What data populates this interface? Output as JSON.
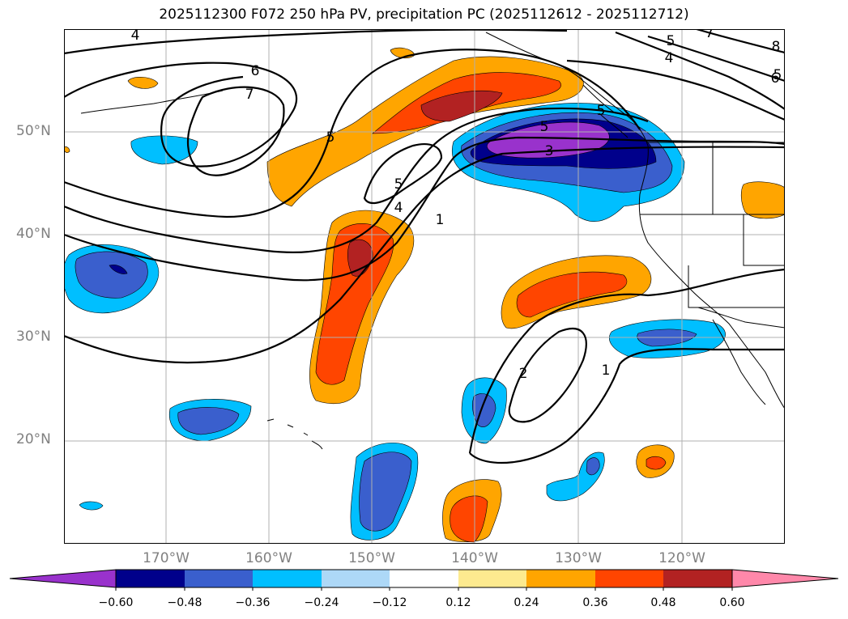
{
  "title": "2025112300 F072 250 hPa PV, precipitation PC (2025112612 - 2025112712)",
  "lat_labels": [
    "50°N",
    "40°N",
    "30°N",
    "20°N"
  ],
  "lon_labels": [
    "170°W",
    "160°W",
    "150°W",
    "140°W",
    "130°W",
    "120°W"
  ],
  "contour_labels": [
    "4",
    "6",
    "7",
    "5",
    "5",
    "5",
    "5",
    "4",
    "1",
    "5",
    "3",
    "5",
    "4",
    "6",
    "7",
    "8",
    "2",
    "1"
  ],
  "colorbar": {
    "ticks": [
      "−0.60",
      "−0.48",
      "−0.36",
      "−0.24",
      "−0.12",
      "0.12",
      "0.24",
      "0.36",
      "0.48",
      "0.60"
    ],
    "colors": [
      "#9932cc",
      "#00008b",
      "#3a5fcd",
      "#00bfff",
      "#add8f7",
      "#ffffff",
      "#fdea8f",
      "#ffa500",
      "#ff4500",
      "#b22222",
      "#ff88aa"
    ]
  },
  "fill_colors": {
    "purple": "#9932cc",
    "navy": "#00008b",
    "royal": "#3a5fcd",
    "sky": "#00bfff",
    "orange": "#ffa500",
    "redorange": "#ff4500",
    "firebrick": "#b22222"
  }
}
